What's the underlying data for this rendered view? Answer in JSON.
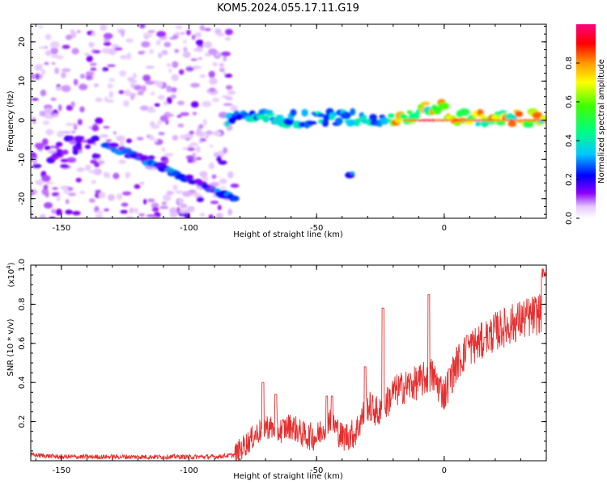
{
  "title": "KOM5.2024.055.17.11.G19",
  "chart_data": [
    {
      "type": "heatmap",
      "xlabel": "Height of straight line (km)",
      "ylabel": "Frequency (Hz)",
      "xlim": [
        -162,
        40
      ],
      "ylim": [
        -25,
        24.5
      ],
      "xticks": [
        -150,
        -100,
        -50,
        0
      ],
      "yticks": [
        20,
        10,
        0,
        -10,
        -20
      ],
      "colorbar": {
        "label": "Normalized spectral amplitude",
        "range": [
          0,
          1
        ],
        "ticks": [
          0.0,
          0.2,
          0.4,
          0.6,
          0.8
        ],
        "colormap": "rainbow (white-violet-blue-cyan-green-yellow-orange-red-magenta)"
      },
      "features": [
        {
          "name": "diagonal streak",
          "x_range": [
            -133,
            -82
          ],
          "freq_range": [
            -6,
            -20
          ]
        },
        {
          "name": "horizontal band",
          "x_range": [
            -85,
            40
          ],
          "freq_approx": 0.5
        },
        {
          "name": "isolated blob",
          "x": -37,
          "freq": -14
        }
      ],
      "grid": false
    },
    {
      "type": "line",
      "xlabel": "Height of straight line (km)",
      "ylabel": "SNR (10 * v/v)",
      "y_exponent_label": "(x10",
      "y_exponent_sup": "4",
      "y_exponent_close": ")",
      "xlim": [
        -162,
        40
      ],
      "ylim": [
        0,
        1.0
      ],
      "xticks": [
        -150,
        -100,
        -50,
        0
      ],
      "yticks": [
        0.2,
        0.4,
        0.6,
        0.8,
        1.0
      ],
      "series_color": "#e63030",
      "x": [
        -162,
        -150,
        -140,
        -130,
        -120,
        -110,
        -100,
        -90,
        -82,
        -75,
        -70,
        -65,
        -60,
        -55,
        -50,
        -45,
        -40,
        -35,
        -30,
        -25,
        -20,
        -15,
        -10,
        -5,
        0,
        5,
        10,
        15,
        20,
        25,
        30,
        35,
        38,
        40
      ],
      "y": [
        0.03,
        0.02,
        0.02,
        0.02,
        0.02,
        0.02,
        0.02,
        0.02,
        0.03,
        0.12,
        0.18,
        0.15,
        0.18,
        0.13,
        0.12,
        0.22,
        0.12,
        0.14,
        0.28,
        0.24,
        0.35,
        0.38,
        0.4,
        0.44,
        0.34,
        0.5,
        0.58,
        0.61,
        0.66,
        0.69,
        0.72,
        0.74,
        0.76,
        0.96
      ],
      "spikes": [
        [
          -71,
          0.4
        ],
        [
          -66,
          0.34
        ],
        [
          -46,
          0.33
        ],
        [
          -44,
          0.33
        ],
        [
          -31,
          0.48
        ],
        [
          -24,
          0.78
        ],
        [
          -6,
          0.85
        ],
        [
          2,
          0.47
        ],
        [
          9,
          0.64
        ],
        [
          16,
          0.63
        ]
      ],
      "grid": false
    }
  ]
}
